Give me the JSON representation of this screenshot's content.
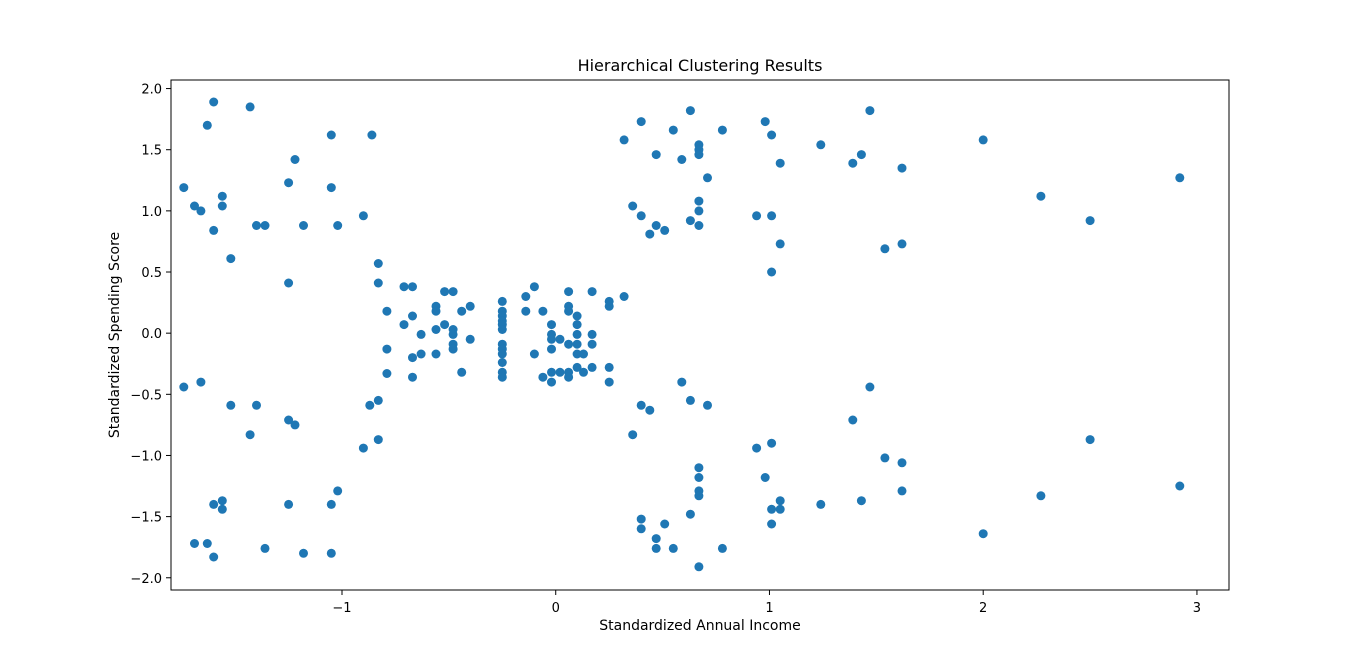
{
  "chart_data": {
    "type": "scatter",
    "title": "Hierarchical Clustering Results",
    "xlabel": "Standardized Annual Income",
    "ylabel": "Standardized Spending Score",
    "xlim": [
      -1.8,
      3.15
    ],
    "ylim": [
      -2.1,
      2.07
    ],
    "xticks": [
      {
        "v": -1,
        "label": "−1"
      },
      {
        "v": 0,
        "label": "0"
      },
      {
        "v": 1,
        "label": "1"
      },
      {
        "v": 2,
        "label": "2"
      },
      {
        "v": 3,
        "label": "3"
      }
    ],
    "yticks": [
      {
        "v": -2,
        "label": "−2.0"
      },
      {
        "v": -1.5,
        "label": "−1.5"
      },
      {
        "v": -1,
        "label": "−1.0"
      },
      {
        "v": -0.5,
        "label": "−0.5"
      },
      {
        "v": 0,
        "label": "0.0"
      },
      {
        "v": 0.5,
        "label": "0.5"
      },
      {
        "v": 1,
        "label": "1.0"
      },
      {
        "v": 1.5,
        "label": "1.5"
      },
      {
        "v": 2,
        "label": "2.0"
      }
    ],
    "grid": false,
    "marker_color": "#1f77b4",
    "points": [
      [
        -1.74,
        1.19
      ],
      [
        -1.69,
        1.04
      ],
      [
        -1.66,
        1.0
      ],
      [
        -1.63,
        1.7
      ],
      [
        -1.6,
        1.89
      ],
      [
        -1.6,
        0.84
      ],
      [
        -1.56,
        1.12
      ],
      [
        -1.56,
        1.04
      ],
      [
        -1.52,
        0.61
      ],
      [
        -1.43,
        1.85
      ],
      [
        -1.4,
        0.88
      ],
      [
        -1.36,
        0.88
      ],
      [
        -1.25,
        1.23
      ],
      [
        -1.25,
        0.41
      ],
      [
        -1.22,
        1.42
      ],
      [
        -1.18,
        0.88
      ],
      [
        -1.05,
        1.62
      ],
      [
        -1.05,
        1.19
      ],
      [
        -1.02,
        0.88
      ],
      [
        -0.9,
        0.96
      ],
      [
        -0.86,
        1.62
      ],
      [
        -0.83,
        0.57
      ],
      [
        -0.83,
        0.41
      ],
      [
        -1.74,
        -0.44
      ],
      [
        -1.66,
        -0.4
      ],
      [
        -1.52,
        -0.59
      ],
      [
        -1.43,
        -0.83
      ],
      [
        -1.4,
        -0.59
      ],
      [
        -1.25,
        -0.71
      ],
      [
        -1.22,
        -0.75
      ],
      [
        -0.9,
        -0.94
      ],
      [
        -0.87,
        -0.59
      ],
      [
        -0.83,
        -0.55
      ],
      [
        -0.83,
        -0.87
      ],
      [
        -1.69,
        -1.72
      ],
      [
        -1.63,
        -1.72
      ],
      [
        -1.6,
        -1.83
      ],
      [
        -1.6,
        -1.4
      ],
      [
        -1.56,
        -1.37
      ],
      [
        -1.56,
        -1.44
      ],
      [
        -1.36,
        -1.76
      ],
      [
        -1.25,
        -1.4
      ],
      [
        -1.18,
        -1.8
      ],
      [
        -1.05,
        -1.8
      ],
      [
        -1.05,
        -1.4
      ],
      [
        -1.02,
        -1.29
      ],
      [
        -0.79,
        0.18
      ],
      [
        -0.79,
        -0.13
      ],
      [
        -0.79,
        -0.33
      ],
      [
        -0.71,
        0.38
      ],
      [
        -0.71,
        0.07
      ],
      [
        -0.67,
        0.38
      ],
      [
        -0.67,
        0.14
      ],
      [
        -0.67,
        -0.2
      ],
      [
        -0.67,
        -0.36
      ],
      [
        -0.63,
        -0.01
      ],
      [
        -0.63,
        -0.17
      ],
      [
        -0.56,
        0.22
      ],
      [
        -0.56,
        0.18
      ],
      [
        -0.56,
        0.03
      ],
      [
        -0.56,
        -0.17
      ],
      [
        -0.52,
        0.34
      ],
      [
        -0.52,
        0.07
      ],
      [
        -0.48,
        0.34
      ],
      [
        -0.48,
        0.03
      ],
      [
        -0.48,
        -0.01
      ],
      [
        -0.48,
        -0.09
      ],
      [
        -0.48,
        -0.13
      ],
      [
        -0.44,
        0.18
      ],
      [
        -0.44,
        -0.32
      ],
      [
        -0.4,
        0.22
      ],
      [
        -0.4,
        -0.05
      ],
      [
        -0.25,
        0.26
      ],
      [
        -0.25,
        0.18
      ],
      [
        -0.25,
        0.14
      ],
      [
        -0.25,
        0.1
      ],
      [
        -0.25,
        0.07
      ],
      [
        -0.25,
        0.03
      ],
      [
        -0.25,
        -0.09
      ],
      [
        -0.25,
        -0.13
      ],
      [
        -0.25,
        -0.17
      ],
      [
        -0.25,
        -0.24
      ],
      [
        -0.25,
        -0.32
      ],
      [
        -0.25,
        -0.36
      ],
      [
        -0.14,
        0.3
      ],
      [
        -0.14,
        0.18
      ],
      [
        -0.1,
        0.38
      ],
      [
        -0.1,
        -0.17
      ],
      [
        -0.06,
        0.18
      ],
      [
        -0.06,
        -0.36
      ],
      [
        -0.02,
        0.07
      ],
      [
        -0.02,
        -0.01
      ],
      [
        -0.02,
        -0.05
      ],
      [
        -0.02,
        -0.13
      ],
      [
        -0.02,
        -0.32
      ],
      [
        -0.02,
        -0.4
      ],
      [
        0.02,
        -0.05
      ],
      [
        0.02,
        -0.32
      ],
      [
        0.06,
        0.34
      ],
      [
        0.06,
        0.22
      ],
      [
        0.06,
        0.18
      ],
      [
        0.06,
        -0.09
      ],
      [
        0.06,
        -0.32
      ],
      [
        0.06,
        -0.36
      ],
      [
        0.1,
        0.14
      ],
      [
        0.1,
        0.07
      ],
      [
        0.1,
        -0.01
      ],
      [
        0.1,
        -0.09
      ],
      [
        0.1,
        -0.17
      ],
      [
        0.1,
        -0.28
      ],
      [
        0.13,
        -0.17
      ],
      [
        0.13,
        -0.32
      ],
      [
        0.17,
        0.34
      ],
      [
        0.17,
        -0.01
      ],
      [
        0.17,
        -0.09
      ],
      [
        0.17,
        -0.28
      ],
      [
        0.25,
        0.26
      ],
      [
        0.25,
        0.22
      ],
      [
        0.25,
        -0.28
      ],
      [
        0.25,
        -0.4
      ],
      [
        0.32,
        0.3
      ],
      [
        0.32,
        1.58
      ],
      [
        0.36,
        1.04
      ],
      [
        0.4,
        1.73
      ],
      [
        0.4,
        0.96
      ],
      [
        0.44,
        0.81
      ],
      [
        0.47,
        1.46
      ],
      [
        0.47,
        0.88
      ],
      [
        0.51,
        0.84
      ],
      [
        0.55,
        1.66
      ],
      [
        0.59,
        1.42
      ],
      [
        0.63,
        1.82
      ],
      [
        0.63,
        0.92
      ],
      [
        0.67,
        1.54
      ],
      [
        0.67,
        1.5
      ],
      [
        0.67,
        1.46
      ],
      [
        0.67,
        1.08
      ],
      [
        0.67,
        1.0
      ],
      [
        0.67,
        0.88
      ],
      [
        0.71,
        1.27
      ],
      [
        0.78,
        1.66
      ],
      [
        0.94,
        0.96
      ],
      [
        0.98,
        1.73
      ],
      [
        1.01,
        1.62
      ],
      [
        1.01,
        0.96
      ],
      [
        1.01,
        0.5
      ],
      [
        1.05,
        1.39
      ],
      [
        1.05,
        0.73
      ],
      [
        1.24,
        1.54
      ],
      [
        1.39,
        1.39
      ],
      [
        1.43,
        1.46
      ],
      [
        1.47,
        1.82
      ],
      [
        1.54,
        0.69
      ],
      [
        1.62,
        1.35
      ],
      [
        1.62,
        0.73
      ],
      [
        2.0,
        1.58
      ],
      [
        2.27,
        1.12
      ],
      [
        2.5,
        0.92
      ],
      [
        2.92,
        1.27
      ],
      [
        0.36,
        -0.83
      ],
      [
        0.4,
        -0.59
      ],
      [
        0.44,
        -0.63
      ],
      [
        0.59,
        -0.4
      ],
      [
        0.63,
        -0.55
      ],
      [
        0.71,
        -0.59
      ],
      [
        0.94,
        -0.94
      ],
      [
        0.98,
        -1.18
      ],
      [
        1.01,
        -0.9
      ],
      [
        1.39,
        -0.71
      ],
      [
        1.47,
        -0.44
      ],
      [
        1.54,
        -1.02
      ],
      [
        1.62,
        -1.06
      ],
      [
        2.5,
        -0.87
      ],
      [
        0.4,
        -1.52
      ],
      [
        0.4,
        -1.6
      ],
      [
        0.47,
        -1.68
      ],
      [
        0.47,
        -1.76
      ],
      [
        0.51,
        -1.56
      ],
      [
        0.55,
        -1.76
      ],
      [
        0.63,
        -1.48
      ],
      [
        0.67,
        -1.1
      ],
      [
        0.67,
        -1.18
      ],
      [
        0.67,
        -1.29
      ],
      [
        0.67,
        -1.33
      ],
      [
        0.67,
        -1.91
      ],
      [
        0.78,
        -1.76
      ],
      [
        1.01,
        -1.44
      ],
      [
        1.01,
        -1.56
      ],
      [
        1.05,
        -1.37
      ],
      [
        1.05,
        -1.44
      ],
      [
        1.24,
        -1.4
      ],
      [
        1.43,
        -1.37
      ],
      [
        1.62,
        -1.29
      ],
      [
        2.0,
        -1.64
      ],
      [
        2.27,
        -1.33
      ],
      [
        2.92,
        -1.25
      ]
    ]
  }
}
